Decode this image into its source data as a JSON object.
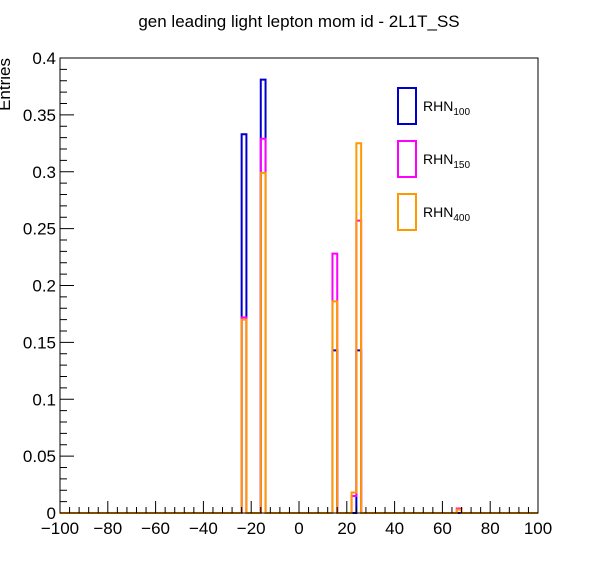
{
  "chart_data": {
    "type": "bar",
    "title": "gen leading light lepton mom id - 2L1T_SS",
    "xlabel": "",
    "ylabel": "Entries",
    "xlim": [
      -100,
      100
    ],
    "ylim": [
      0,
      0.4
    ],
    "bin_width": 2,
    "x_ticks": [
      -100,
      -80,
      -60,
      -40,
      -20,
      0,
      20,
      40,
      60,
      80,
      100
    ],
    "x_tick_labels": [
      "−100",
      "−80",
      "−60",
      "−40",
      "−20",
      "0",
      "20",
      "40",
      "60",
      "80",
      "100"
    ],
    "y_ticks": [
      0,
      0.05,
      0.1,
      0.15,
      0.2,
      0.25,
      0.3,
      0.35,
      0.4
    ],
    "y_tick_labels": [
      "0",
      "0.05",
      "0.1",
      "0.15",
      "0.2",
      "0.25",
      "0.3",
      "0.35",
      "0.4"
    ],
    "grid": false,
    "legend_position": "top-right",
    "series": [
      {
        "base": "RHN",
        "sub": "100",
        "color": "#0000cc",
        "bins": [
          {
            "x": -24,
            "y": 0.333
          },
          {
            "x": -16,
            "y": 0.381
          },
          {
            "x": 14,
            "y": 0.143
          },
          {
            "x": 22,
            "y": 0.0
          },
          {
            "x": 24,
            "y": 0.143
          }
        ]
      },
      {
        "base": "RHN",
        "sub": "150",
        "color": "#ff00ff",
        "bins": [
          {
            "x": -24,
            "y": 0.172
          },
          {
            "x": -16,
            "y": 0.329
          },
          {
            "x": 14,
            "y": 0.228
          },
          {
            "x": 22,
            "y": 0.015
          },
          {
            "x": 24,
            "y": 0.257
          },
          {
            "x": 66,
            "y": 0.004
          }
        ]
      },
      {
        "base": "RHN",
        "sub": "400",
        "color": "#ff9900",
        "bins": [
          {
            "x": -24,
            "y": 0.17
          },
          {
            "x": -16,
            "y": 0.299
          },
          {
            "x": 14,
            "y": 0.186
          },
          {
            "x": 22,
            "y": 0.018
          },
          {
            "x": 24,
            "y": 0.325
          },
          {
            "x": 66,
            "y": 0.003
          }
        ]
      }
    ]
  }
}
